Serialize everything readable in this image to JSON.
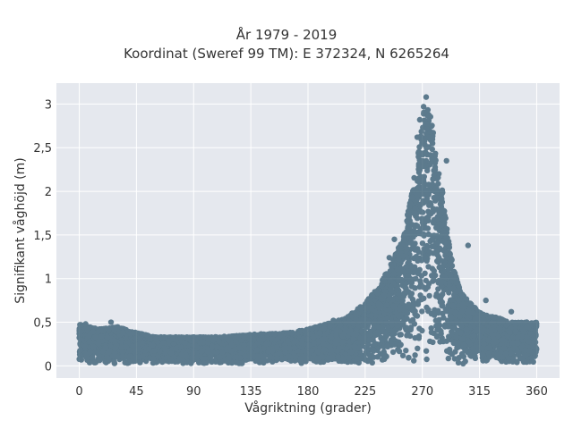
{
  "chart_data": {
    "type": "scatter",
    "title_lines": [
      "År 1979 - 2019",
      "Koordinat (Sweref 99 TM): E 372324, N 6265264"
    ],
    "xlabel": "Vågriktning (grader)",
    "ylabel": "Signifikant våghöjd (m)",
    "xlim": [
      -18,
      378
    ],
    "ylim": [
      -0.14,
      3.24
    ],
    "xticks": [
      0,
      45,
      90,
      135,
      180,
      225,
      270,
      315,
      360
    ],
    "xtick_labels": [
      "0",
      "45",
      "90",
      "135",
      "180",
      "225",
      "270",
      "315",
      "360"
    ],
    "yticks": [
      0,
      0.5,
      1,
      1.5,
      2,
      2.5,
      3
    ],
    "ytick_labels": [
      "0",
      "0,5",
      "1",
      "1,5",
      "2",
      "2,5",
      "3"
    ],
    "grid": true,
    "background": "#e5e8ee",
    "marker_color": "#2f566d",
    "envelope": {
      "direction_deg": [
        0,
        15,
        30,
        45,
        60,
        75,
        90,
        105,
        120,
        135,
        150,
        165,
        180,
        195,
        210,
        225,
        235,
        245,
        255,
        262,
        268,
        272,
        276,
        280,
        285,
        290,
        295,
        300,
        310,
        320,
        330,
        340,
        350,
        360
      ],
      "max_height_m": [
        0.48,
        0.42,
        0.45,
        0.38,
        0.33,
        0.33,
        0.33,
        0.33,
        0.34,
        0.36,
        0.37,
        0.38,
        0.42,
        0.48,
        0.55,
        0.72,
        0.9,
        1.15,
        1.5,
        2.0,
        2.6,
        3.0,
        2.9,
        2.6,
        2.1,
        1.5,
        1.1,
        0.85,
        0.68,
        0.58,
        0.55,
        0.5,
        0.5,
        0.5
      ]
    },
    "outliers": [
      {
        "x": 273,
        "y": 3.08
      },
      {
        "x": 271,
        "y": 2.97
      },
      {
        "x": 268,
        "y": 2.82
      },
      {
        "x": 266,
        "y": 2.62
      },
      {
        "x": 289,
        "y": 2.35
      },
      {
        "x": 306,
        "y": 1.38
      },
      {
        "x": 283,
        "y": 2.2
      },
      {
        "x": 244,
        "y": 1.24
      },
      {
        "x": 222,
        "y": 0.65
      },
      {
        "x": 248,
        "y": 1.45
      },
      {
        "x": 200,
        "y": 0.52
      },
      {
        "x": 320,
        "y": 0.75
      },
      {
        "x": 340,
        "y": 0.62
      },
      {
        "x": 5,
        "y": 0.48
      },
      {
        "x": 25,
        "y": 0.5
      }
    ]
  }
}
